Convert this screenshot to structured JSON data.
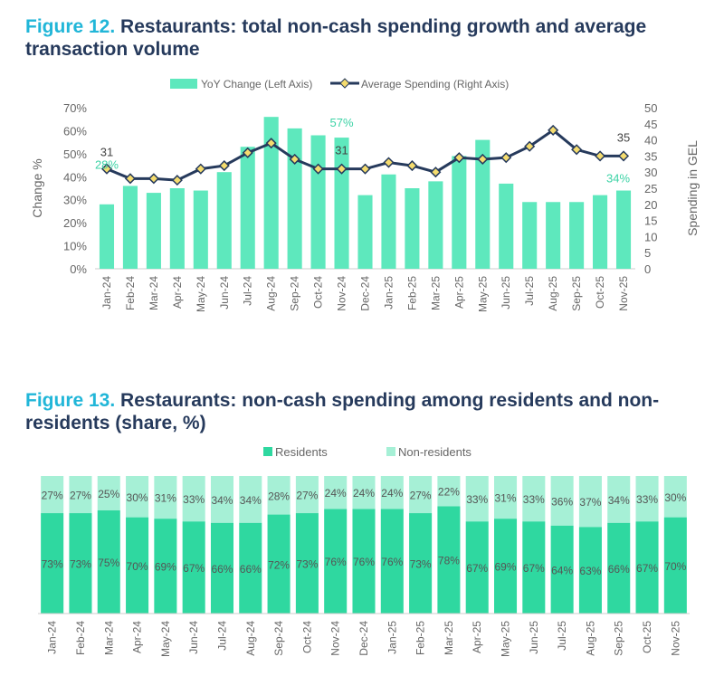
{
  "chart_data": [
    {
      "type": "bar+line",
      "figure_label": "Figure 12.",
      "title": "Restaurants: total non-cash spending growth and average transaction volume",
      "ylabel": "Change %",
      "y2label": "Spending in GEL",
      "ylim": [
        0,
        70
      ],
      "y2lim": [
        0,
        50
      ],
      "yticks": [
        "0%",
        "10%",
        "20%",
        "30%",
        "40%",
        "50%",
        "60%",
        "70%"
      ],
      "y2ticks": [
        "0",
        "5",
        "10",
        "15",
        "20",
        "25",
        "30",
        "35",
        "40",
        "45",
        "50"
      ],
      "legend": [
        "YoY Change (Left Axis)",
        "Average Spending (Right Axis)"
      ],
      "categories": [
        "Jan-24",
        "Feb-24",
        "Mar-24",
        "Apr-24",
        "May-24",
        "Jun-24",
        "Jul-24",
        "Aug-24",
        "Sep-24",
        "Oct-24",
        "Nov-24",
        "Dec-24",
        "Jan-25",
        "Feb-25",
        "Mar-25",
        "Apr-25",
        "May-25",
        "Jun-25",
        "Jul-25",
        "Aug-25",
        "Sep-25",
        "Oct-25",
        "Nov-25"
      ],
      "series": [
        {
          "name": "YoY Change (Left Axis)",
          "color": "#5ee8bd",
          "values": [
            28,
            36,
            33,
            35,
            34,
            42,
            53,
            66,
            61,
            58,
            57,
            32,
            41,
            35,
            38,
            49,
            56,
            37,
            29,
            29,
            29,
            32,
            34
          ]
        },
        {
          "name": "Average Spending (Right Axis)",
          "color": "#263a5c",
          "marker": "#f5dc6e",
          "values": [
            31,
            28,
            28,
            27.5,
            31,
            32,
            36,
            39,
            34,
            31,
            31,
            31,
            33,
            32,
            30,
            34.5,
            34,
            34.5,
            38,
            43,
            37,
            35,
            35
          ]
        }
      ],
      "annotations": [
        {
          "index": 0,
          "series": 0,
          "text": "28%"
        },
        {
          "index": 10,
          "series": 0,
          "text": "57%"
        },
        {
          "index": 22,
          "series": 0,
          "text": "34%"
        },
        {
          "index": 0,
          "series": 1,
          "text": "31"
        },
        {
          "index": 10,
          "series": 1,
          "text": "31"
        },
        {
          "index": 22,
          "series": 1,
          "text": "35"
        }
      ]
    },
    {
      "type": "stacked-bar",
      "figure_label": "Figure 13.",
      "title": "Restaurants: non-cash spending among residents and non-residents (share, %)",
      "legend": [
        "Residents",
        "Non-residents"
      ],
      "categories": [
        "Jan-24",
        "Feb-24",
        "Mar-24",
        "Apr-24",
        "May-24",
        "Jun-24",
        "Jul-24",
        "Aug-24",
        "Sep-24",
        "Oct-24",
        "Nov-24",
        "Dec-24",
        "Jan-25",
        "Feb-25",
        "Mar-25",
        "Apr-25",
        "May-25",
        "Jun-25",
        "Jul-25",
        "Aug-25",
        "Sep-25",
        "Oct-25",
        "Nov-25"
      ],
      "series": [
        {
          "name": "Residents",
          "color": "#2fd8a0",
          "values": [
            73,
            73,
            75,
            70,
            69,
            67,
            66,
            66,
            72,
            73,
            76,
            76,
            76,
            73,
            78,
            67,
            69,
            67,
            64,
            63,
            66,
            67,
            70
          ]
        },
        {
          "name": "Non-residents",
          "color": "#a6f0d6",
          "values": [
            27,
            27,
            25,
            30,
            31,
            33,
            34,
            34,
            28,
            27,
            24,
            24,
            24,
            27,
            22,
            33,
            31,
            33,
            36,
            37,
            34,
            33,
            30
          ]
        }
      ]
    }
  ]
}
